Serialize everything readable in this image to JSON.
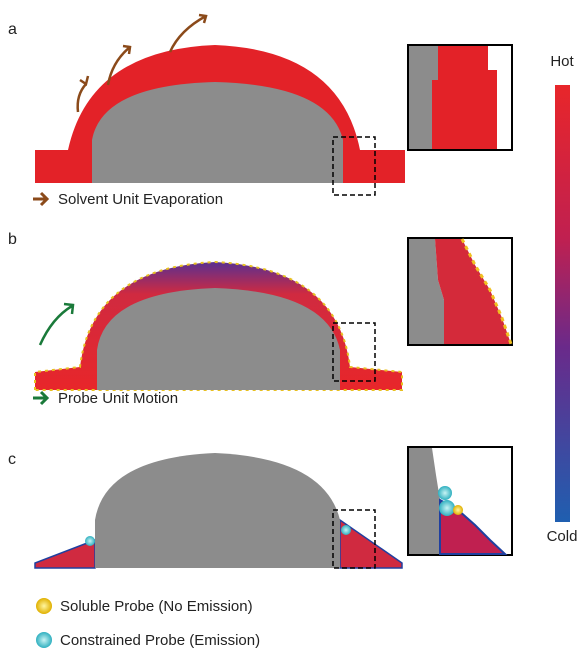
{
  "panels": [
    {
      "label": "a",
      "caption": "Solvent Unit Evaporation"
    },
    {
      "label": "b",
      "caption": "Probe Unit Motion"
    },
    {
      "label": "c"
    }
  ],
  "colorbar": {
    "top": "Hot",
    "bottom": "Cold"
  },
  "legend": [
    {
      "label": "Soluble Probe (No Emission)"
    },
    {
      "label": "Constrained Probe (Emission)"
    }
  ]
}
